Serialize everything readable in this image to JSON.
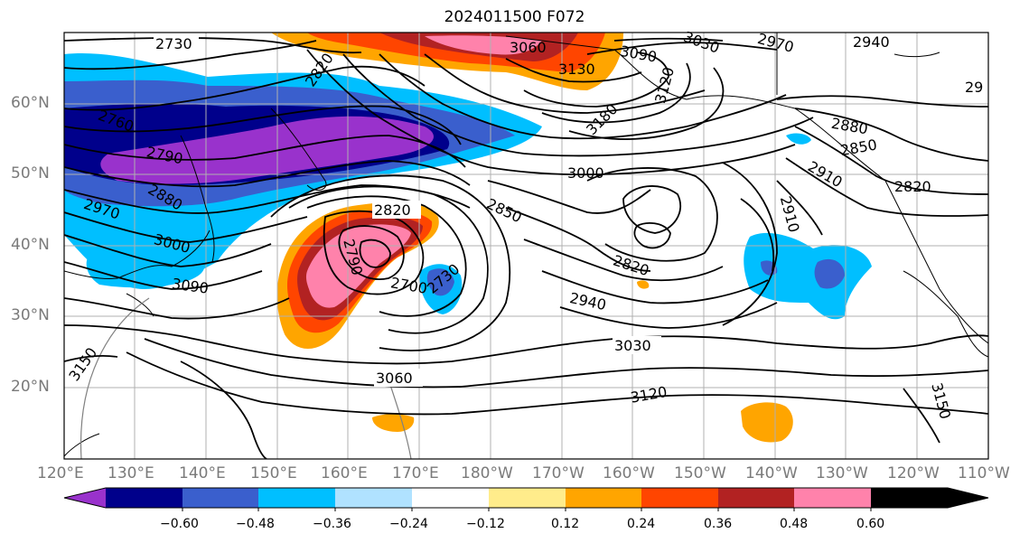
{
  "title": "2024011500 F072",
  "lat_labels": [
    "60°N",
    "50°N",
    "40°N",
    "30°N",
    "20°N"
  ],
  "lon_labels": [
    "120°E",
    "130°E",
    "140°E",
    "150°E",
    "160°E",
    "170°E",
    "180°W",
    "170°W",
    "160°W",
    "150°W",
    "140°W",
    "130°W",
    "120°W",
    "110°W"
  ],
  "colorbar": {
    "tick_labels": [
      "−0.60",
      "−0.48",
      "−0.36",
      "−0.24",
      "−0.12",
      "0.12",
      "0.24",
      "0.36",
      "0.48",
      "0.60"
    ],
    "colors": [
      "#9932cc",
      "#00008b",
      "#3a5fcd",
      "#00bfff",
      "#b0e2ff",
      "#ffffff",
      "#ffec8b",
      "#ffa500",
      "#ff4500",
      "#b22222",
      "#ff82ab"
    ]
  },
  "contour_labels": [
    "2730",
    "2820",
    "2760",
    "2790",
    "2880",
    "2970",
    "3000",
    "3090",
    "3150",
    "3060",
    "3030",
    "2940",
    "2970",
    "3130",
    "3180",
    "3120",
    "3090",
    "2880",
    "2850",
    "2820",
    "2910",
    "2910",
    "3000",
    "2850",
    "2820",
    "2790",
    "2700",
    "2730",
    "2820",
    "2940",
    "3030",
    "3060",
    "3120",
    "3150",
    "29"
  ]
}
